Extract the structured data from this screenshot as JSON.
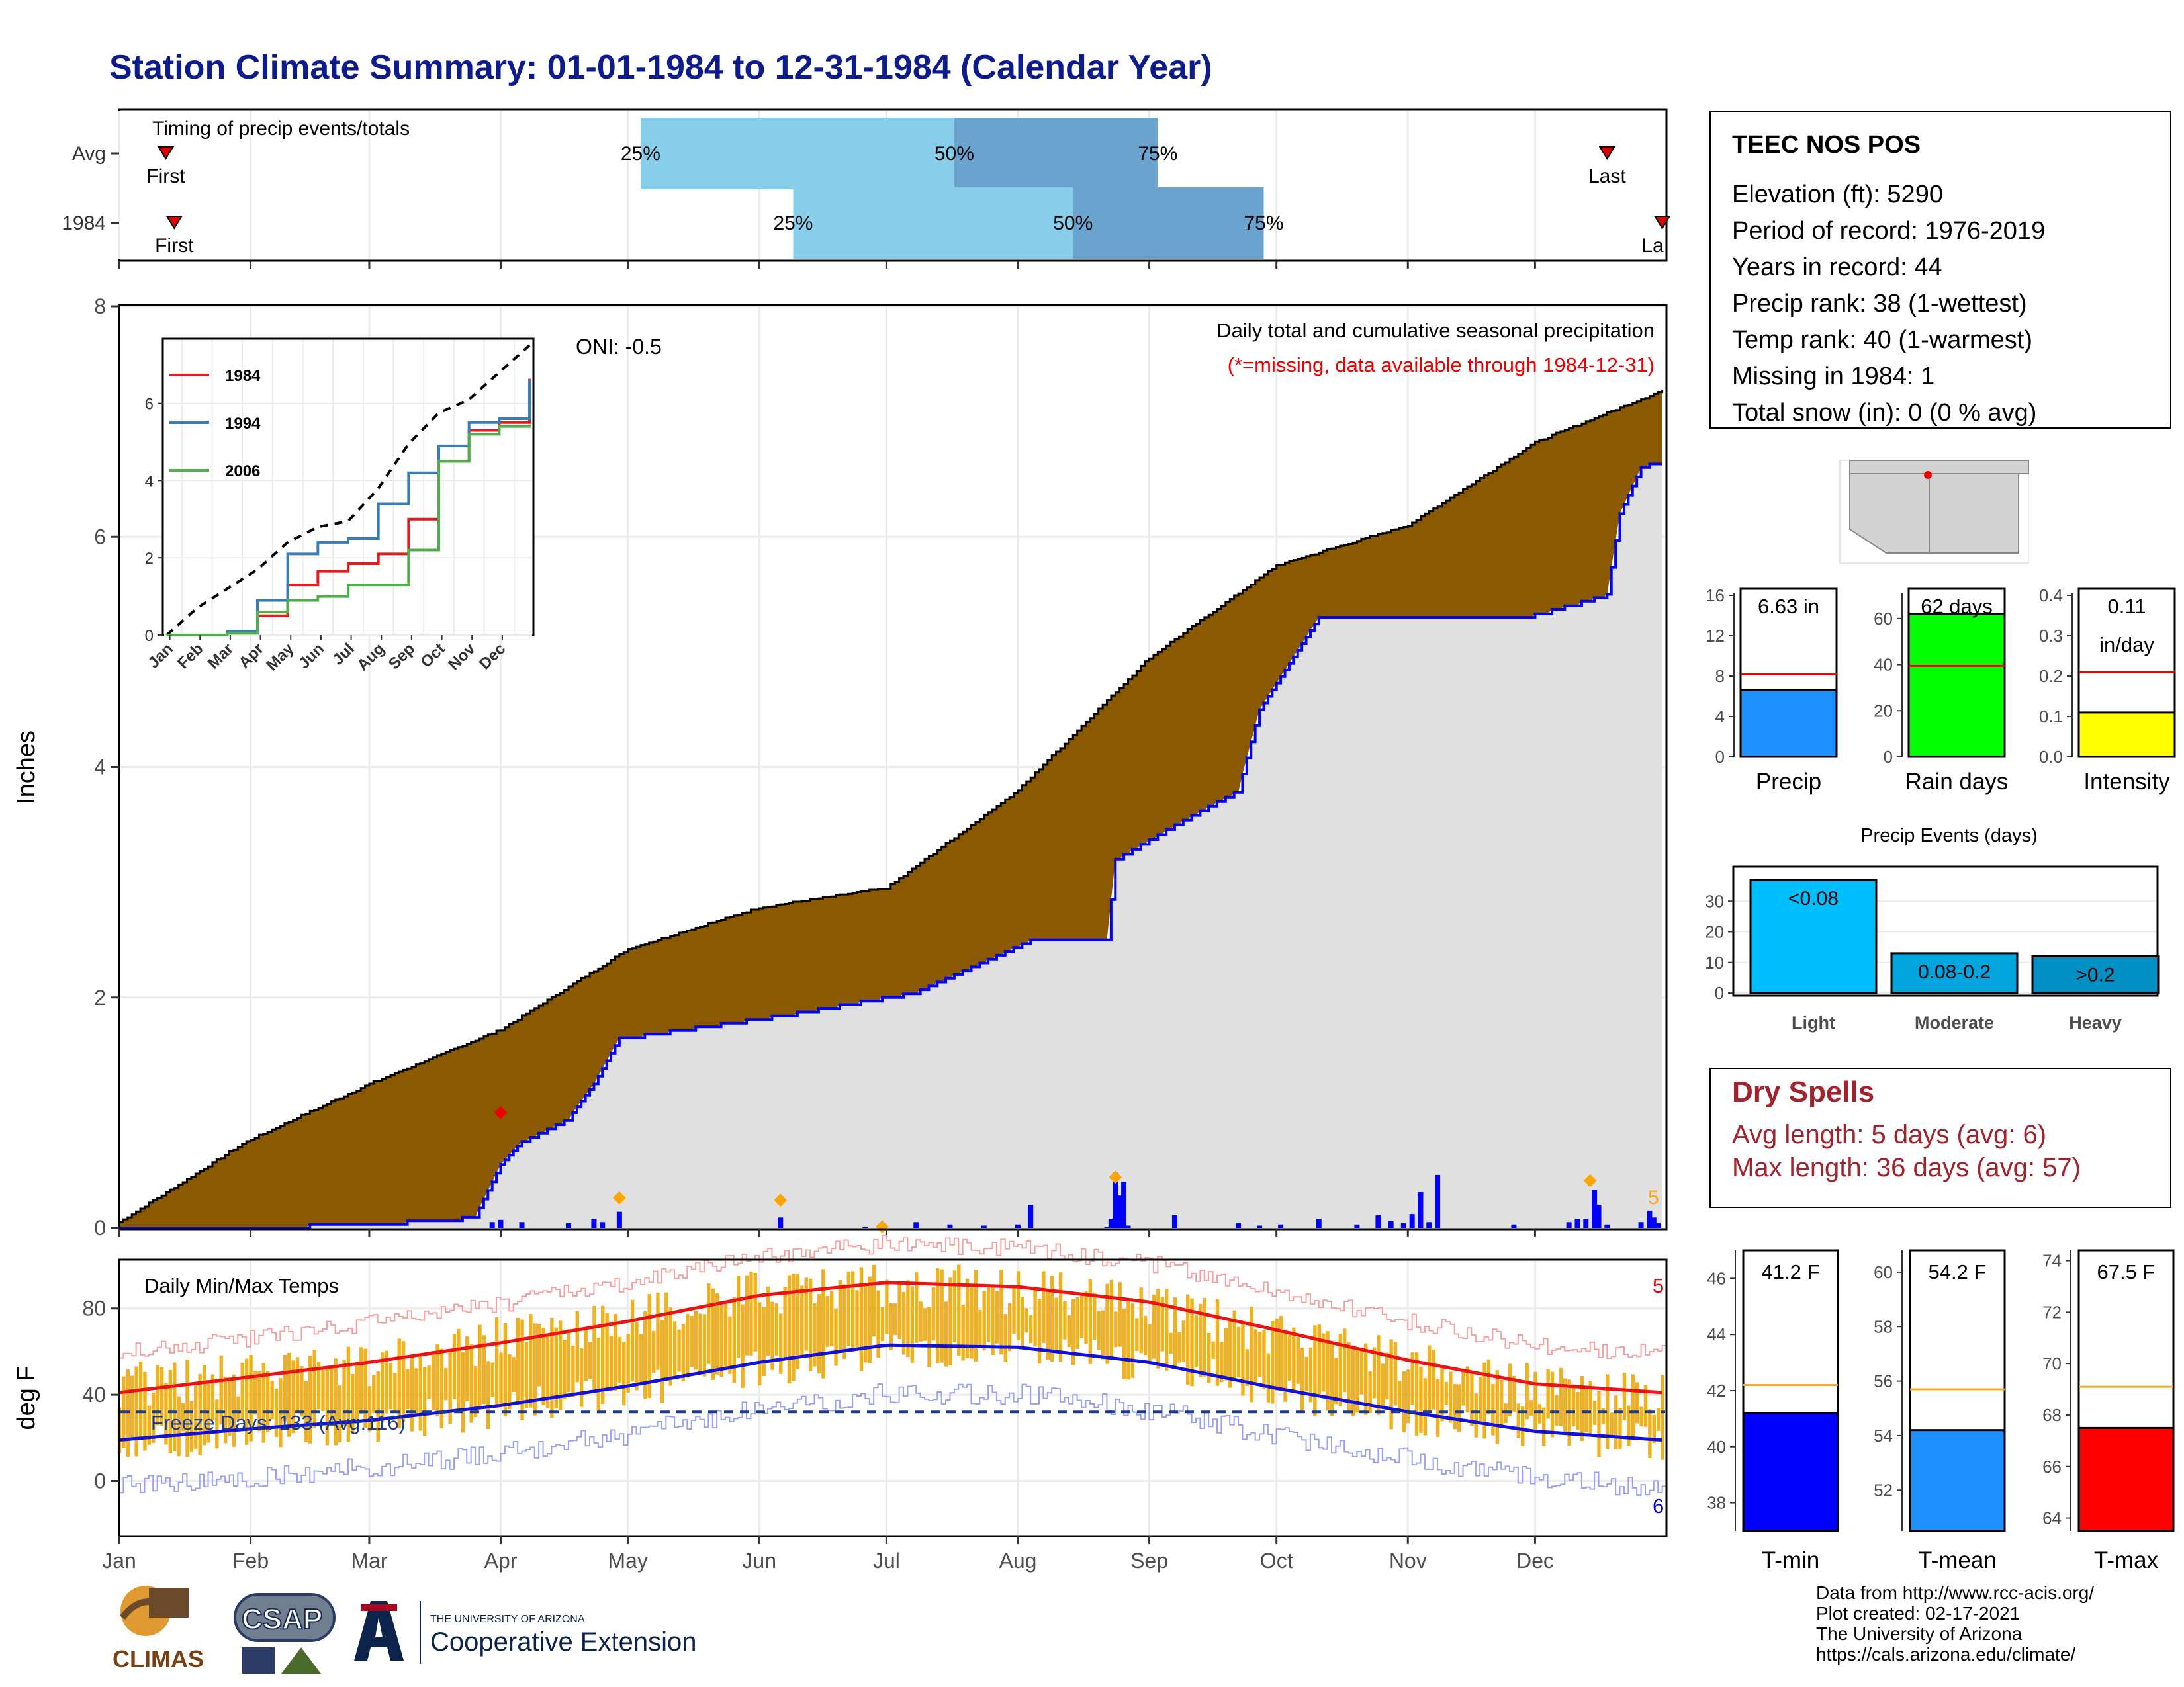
{
  "title": "Station Climate Summary: 01-01-1984 to 12-31-1984 (Calendar Year)",
  "colors": {
    "title": "#0d1b8c",
    "cum_1984_fill": "#8b5a00",
    "cum_avg_fill": "#e0e0e0",
    "precip_bars": "#0000ff",
    "q_light": "#87ceeb",
    "q_dark": "#6aa3cd",
    "temp_range": "#f0b11e",
    "avg_max": "#ee1111",
    "avg_min": "#1111dd",
    "dry_text": "#a0232d"
  },
  "timing": {
    "title": "Timing of precip events/totals",
    "rows": [
      {
        "label": "Avg",
        "first_label": "First",
        "last_label": "Last",
        "first_day": 12,
        "last_day": 352,
        "q25_label": "25%",
        "q50_label": "50%",
        "q75_label": "75%",
        "q25_day": 124,
        "q50_day": 198,
        "q75_day": 246
      },
      {
        "label": "1984",
        "first_label": "First",
        "last_label": "La",
        "first_day": 14,
        "last_day": 365,
        "q25_label": "25%",
        "q50_label": "50%",
        "q75_label": "75%",
        "q25_day": 160,
        "q50_day": 226,
        "q75_day": 271
      }
    ]
  },
  "precip_panel": {
    "ylabel": "Inches",
    "yticks": [
      "0",
      "2",
      "4",
      "6",
      "8"
    ],
    "ymax": 8,
    "oni": "ONI: -0.5",
    "subtitle": "Daily total and cumulative seasonal precipitation",
    "missing_note": "(*=missing, data available through 1984-12-31)",
    "corner_count": "5",
    "missing_marker": {
      "day": 91,
      "value": 1.0
    },
    "extreme_markers": [
      {
        "day": 119,
        "value": 0.26
      },
      {
        "day": 157,
        "value": 0.24
      },
      {
        "day": 236,
        "value": 0.44
      },
      {
        "day": 348,
        "value": 0.41
      },
      {
        "day": 181,
        "value": 0.01
      }
    ]
  },
  "inset": {
    "yticks": [
      "0",
      "2",
      "4",
      "6"
    ],
    "months": [
      "Jan",
      "Feb",
      "Mar",
      "Apr",
      "May",
      "Jun",
      "Jul",
      "Aug",
      "Sep",
      "Oct",
      "Nov",
      "Dec"
    ],
    "legend": [
      {
        "name": "1984",
        "color": "#e41a1c"
      },
      {
        "name": "1994",
        "color": "#377eb8"
      },
      {
        "name": "2006",
        "color": "#4daf4a"
      }
    ]
  },
  "months": [
    "Jan",
    "Feb",
    "Mar",
    "Apr",
    "May",
    "Jun",
    "Jul",
    "Aug",
    "Sep",
    "Oct",
    "Nov",
    "Dec"
  ],
  "temp_panel": {
    "ylabel": "deg F",
    "title": "Daily Min/Max Temps",
    "yticks": [
      "0",
      "40",
      "80"
    ],
    "freeze_label": "Freeze Days: 133 (Avg:116)",
    "freeze_line": 32,
    "count_top": "5",
    "count_bottom": "6"
  },
  "station": {
    "name": "TEEC NOS POS",
    "lines": [
      "Elevation (ft): 5290",
      "Period of record: 1976-2019",
      "Years in record: 44",
      "Precip rank: 38 (1-wettest)",
      "Temp rank: 40 (1-warmest)",
      "Missing in 1984: 1",
      "Total snow (in): 0 (0 % avg)"
    ]
  },
  "mini_bars": [
    {
      "label": "Precip",
      "value_label": "6.63 in",
      "value": 6.63,
      "avg": 8.2,
      "ymax": 16,
      "yticks": [
        "0",
        "4",
        "8",
        "12",
        "16"
      ],
      "color": "#1e90ff"
    },
    {
      "label": "Rain days",
      "value_label": "62 days",
      "value": 62,
      "avg": 39.5,
      "ymax": 70,
      "yticks": [
        "0",
        "20",
        "40",
        "60"
      ],
      "color": "#00ff00"
    },
    {
      "label": "Intensity",
      "value_label": "0.11\nin/day",
      "value": 0.11,
      "avg": 0.21,
      "ymax": 0.4,
      "yticks": [
        "0.0",
        "0.1",
        "0.2",
        "0.3",
        "0.4"
      ],
      "color": "#ffff00"
    }
  ],
  "precip_events": {
    "title": "Precip Events (days)",
    "yticks": [
      "0",
      "10",
      "20",
      "30"
    ],
    "ymax": 40,
    "bars": [
      {
        "category": "Light",
        "label": "<0.08",
        "value": 37,
        "color": "#00bfff"
      },
      {
        "category": "Moderate",
        "label": "0.08-0.2",
        "value": 13,
        "color": "#00a5dd"
      },
      {
        "category": "Heavy",
        "label": ">0.2",
        "value": 12,
        "color": "#0090c4"
      }
    ]
  },
  "dry_spells": {
    "title": "Dry Spells",
    "lines": [
      "Avg length: 5 days (avg: 6)",
      "Max length: 36 days (avg: 57)"
    ]
  },
  "temp_bars": [
    {
      "label": "T-min",
      "value_label": "41.2 F",
      "value": 41.2,
      "avg": 42.2,
      "ymin": 37,
      "ymax": 47,
      "ticks": [
        38,
        40,
        42,
        44,
        46
      ],
      "color": "#0000ff"
    },
    {
      "label": "T-mean",
      "value_label": "54.2 F",
      "value": 54.2,
      "avg": 55.7,
      "ymin": 50.5,
      "ymax": 60.8,
      "ticks": [
        52,
        54,
        56,
        58,
        60
      ],
      "color": "#1e90ff"
    },
    {
      "label": "T-max",
      "value_label": "67.5 F",
      "value": 67.5,
      "avg": 69.1,
      "ymin": 63.5,
      "ymax": 74.4,
      "ticks": [
        64,
        66,
        68,
        70,
        72,
        74
      ],
      "color": "#ff0000"
    }
  ],
  "footer": [
    "Data from http://www.rcc-acis.org/",
    "Plot created: 02-17-2021",
    "The University of Arizona",
    "https://cals.arizona.edu/climate/"
  ],
  "logos": {
    "climas": "CLIMAS",
    "csap": "CSAP",
    "ua_small": "THE UNIVERSITY OF ARIZONA",
    "ua_big": "Cooperative Extension"
  },
  "chart_data": [
    {
      "type": "area",
      "title": "Daily total and cumulative seasonal precipitation",
      "ylabel": "Inches",
      "ylim": [
        0,
        8
      ],
      "x_unit": "day of year",
      "series": [
        {
          "name": "avg cumulative",
          "x": [
            1,
            31,
            60,
            91,
            121,
            152,
            182,
            213,
            244,
            274,
            305,
            335,
            365
          ],
          "values": [
            0.05,
            0.75,
            1.25,
            1.72,
            2.42,
            2.78,
            2.95,
            3.8,
            4.95,
            5.75,
            6.1,
            6.82,
            7.27
          ]
        },
        {
          "name": "1984",
          "x": [
            1,
            60,
            85,
            91,
            96,
            107,
            113,
            119,
            157,
            189,
            216,
            234,
            236,
            250,
            265,
            270,
            284,
            332,
            352,
            355,
            360,
            362,
            365
          ],
          "values": [
            0.0,
            0.04,
            0.1,
            0.55,
            0.75,
            0.95,
            1.25,
            1.65,
            1.85,
            2.05,
            2.5,
            2.5,
            3.2,
            3.5,
            3.8,
            4.5,
            5.3,
            5.3,
            5.5,
            6.2,
            6.6,
            6.63,
            6.63
          ]
        }
      ]
    },
    {
      "type": "line",
      "title": "Daily Min/Max Temps",
      "ylabel": "deg F",
      "ylim": [
        -25,
        102
      ],
      "x": [
        1,
        31,
        60,
        91,
        121,
        152,
        182,
        213,
        244,
        274,
        305,
        335,
        365
      ],
      "series": [
        {
          "name": "avg max",
          "values": [
            41,
            48,
            55,
            64,
            74,
            86,
            92,
            90,
            83,
            70,
            56,
            45,
            41
          ]
        },
        {
          "name": "avg min",
          "values": [
            19,
            24,
            28,
            35,
            44,
            55,
            63,
            62,
            55,
            43,
            32,
            23,
            19
          ]
        },
        {
          "name": "1984 max",
          "values": [
            44,
            50,
            53,
            66,
            75,
            88,
            91,
            88,
            82,
            68,
            54,
            43,
            40
          ]
        },
        {
          "name": "1984 min",
          "values": [
            17,
            22,
            26,
            33,
            41,
            52,
            61,
            61,
            54,
            42,
            30,
            22,
            18
          ]
        }
      ]
    },
    {
      "type": "line",
      "title": "",
      "x_categories": [
        "Jan",
        "Feb",
        "Mar",
        "Apr",
        "May",
        "Jun",
        "Jul",
        "Aug",
        "Sep",
        "Oct",
        "Nov",
        "Dec"
      ],
      "ylim": [
        0,
        7.5
      ],
      "series": [
        {
          "name": "1984",
          "x": [
            0,
            2,
            3,
            4,
            5,
            6,
            7,
            8,
            9,
            10,
            11,
            12
          ],
          "values": [
            0,
            0.05,
            0.5,
            1.3,
            1.65,
            1.85,
            2.1,
            3.0,
            4.5,
            5.3,
            5.5,
            6.63
          ]
        },
        {
          "name": "1994",
          "x": [
            0,
            2,
            3,
            4,
            5,
            6,
            7,
            8,
            9,
            10,
            11,
            12
          ],
          "values": [
            0,
            0.1,
            0.9,
            2.1,
            2.4,
            2.5,
            3.4,
            4.2,
            4.9,
            5.5,
            5.6,
            6.6
          ]
        },
        {
          "name": "2006",
          "x": [
            0,
            2,
            3,
            4,
            5,
            6,
            7,
            8,
            9,
            10,
            11,
            12
          ],
          "values": [
            0,
            0.05,
            0.6,
            0.9,
            1.0,
            1.3,
            1.3,
            2.2,
            4.5,
            5.2,
            5.4,
            5.45
          ]
        }
      ]
    },
    {
      "type": "bar",
      "title": "Precip Events (days)",
      "categories": [
        "Light",
        "Moderate",
        "Heavy"
      ],
      "values": [
        37,
        13,
        12
      ],
      "ylim": [
        0,
        40
      ]
    }
  ]
}
